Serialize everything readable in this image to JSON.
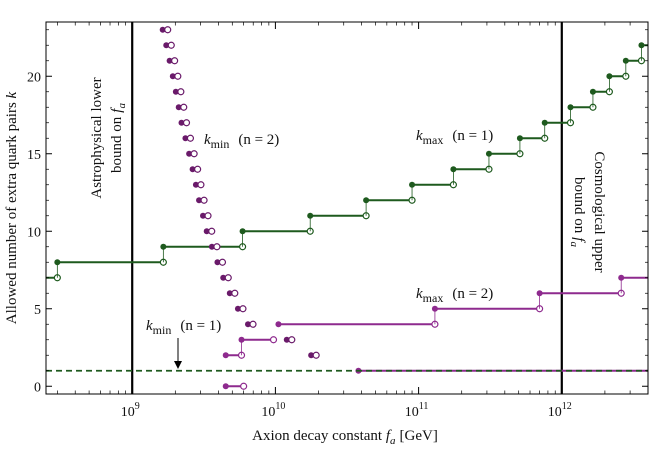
{
  "chart_data": {
    "type": "line",
    "title": "",
    "xlabel": "Axion decay constant",
    "xlabel_symbol": "f",
    "xlabel_sub": "a",
    "xlabel_unit": "[GeV]",
    "ylabel": "Allowed number of extra quark pairs k",
    "x_scale": "log",
    "xlim": [
      250000000,
      4000000000000
    ],
    "ylim": [
      -0.5,
      23.5
    ],
    "x_ticks": [
      {
        "value": 1000000000,
        "base": "10",
        "exp": "9"
      },
      {
        "value": 10000000000,
        "base": "10",
        "exp": "10"
      },
      {
        "value": 100000000000,
        "base": "10",
        "exp": "11"
      },
      {
        "value": 1000000000000,
        "base": "10",
        "exp": "12"
      }
    ],
    "y_ticks": [
      0,
      5,
      10,
      15,
      20
    ],
    "vertical_lines": [
      1000000000,
      1000000000000
    ],
    "grid": false,
    "colors": {
      "kmax_n1": "#1e5a1e",
      "kmax_n2": "#8e2a8e",
      "kmin_n2": "#6a1a6a",
      "axis": "#000000"
    },
    "series": [
      {
        "name": "k_max (n = 1)",
        "color": "#1e5a1e",
        "style": "step",
        "steps": [
          {
            "k": 7,
            "x1": 250000000,
            "x2": 300000000
          },
          {
            "k": 8,
            "x1": 300000000,
            "x2": 1650000000
          },
          {
            "k": 9,
            "x1": 1650000000,
            "x2": 5900000000
          },
          {
            "k": 10,
            "x1": 5900000000,
            "x2": 17500000000
          },
          {
            "k": 11,
            "x1": 17500000000,
            "x2": 43000000000
          },
          {
            "k": 12,
            "x1": 43000000000,
            "x2": 90000000000
          },
          {
            "k": 13,
            "x1": 90000000000,
            "x2": 175000000000
          },
          {
            "k": 14,
            "x1": 175000000000,
            "x2": 310000000000
          },
          {
            "k": 15,
            "x1": 310000000000,
            "x2": 510000000000
          },
          {
            "k": 16,
            "x1": 510000000000,
            "x2": 760000000000
          },
          {
            "k": 17,
            "x1": 760000000000,
            "x2": 1150000000000
          },
          {
            "k": 18,
            "x1": 1150000000000,
            "x2": 1650000000000
          },
          {
            "k": 19,
            "x1": 1650000000000,
            "x2": 2150000000000
          },
          {
            "k": 20,
            "x1": 2150000000000,
            "x2": 2800000000000
          },
          {
            "k": 21,
            "x1": 2800000000000,
            "x2": 3600000000000
          },
          {
            "k": 22,
            "x1": 3600000000000,
            "x2": 4000000000000
          }
        ]
      },
      {
        "name": "k_max (n = 2)",
        "color": "#8e2a8e",
        "style": "step",
        "steps": [
          {
            "k": 0,
            "x1": 4500000000,
            "x2": 6000000000
          },
          {
            "k": 1,
            "x1": 38000000000,
            "x2": 4000000000000
          },
          {
            "k": 2,
            "x1": 4500000000,
            "x2": 5800000000
          },
          {
            "k": 3,
            "x1": 5800000000,
            "x2": 9700000000
          },
          {
            "k": 4,
            "x1": 10500000000,
            "x2": 130000000000
          },
          {
            "k": 5,
            "x1": 130000000000,
            "x2": 700000000000
          },
          {
            "k": 6,
            "x1": 700000000000,
            "x2": 2600000000000
          },
          {
            "k": 7,
            "x1": 2600000000000,
            "x2": 4000000000000
          }
        ]
      },
      {
        "name": "k_min (n = 2)",
        "color": "#6a1a6a",
        "style": "dots",
        "points": [
          {
            "k": 23,
            "x": 1700000000
          },
          {
            "k": 22,
            "x": 1800000000
          },
          {
            "k": 21,
            "x": 1900000000
          },
          {
            "k": 20,
            "x": 2000000000
          },
          {
            "k": 19,
            "x": 2100000000
          },
          {
            "k": 18,
            "x": 2200000000
          },
          {
            "k": 17,
            "x": 2300000000
          },
          {
            "k": 16,
            "x": 2450000000
          },
          {
            "k": 15,
            "x": 2600000000
          },
          {
            "k": 14,
            "x": 2750000000
          },
          {
            "k": 13,
            "x": 2900000000
          },
          {
            "k": 12,
            "x": 3050000000
          },
          {
            "k": 11,
            "x": 3250000000
          },
          {
            "k": 10,
            "x": 3450000000
          },
          {
            "k": 9,
            "x": 3750000000
          },
          {
            "k": 8,
            "x": 4100000000
          },
          {
            "k": 7,
            "x": 4500000000
          },
          {
            "k": 6,
            "x": 5000000000
          },
          {
            "k": 5,
            "x": 5700000000
          },
          {
            "k": 4,
            "x": 6700000000
          },
          {
            "k": 3,
            "x": 12500000000
          },
          {
            "k": 2,
            "x": 18500000000
          }
        ]
      },
      {
        "name": "k_min (n = 1)",
        "color": "#1e5a1e",
        "style": "dashed",
        "steps": [
          {
            "k": 1,
            "x1": 250000000,
            "x2": 4000000000000
          }
        ]
      }
    ],
    "annotations": [
      {
        "id": "astro",
        "text": "Astrophysical lower bound on f_a"
      },
      {
        "id": "cosmo",
        "text": "Cosmological upper bound on f_a"
      },
      {
        "id": "kmin-n2",
        "text": "k_min (n = 2)"
      },
      {
        "id": "kmax-n1",
        "text": "k_max (n = 1)"
      },
      {
        "id": "kmax-n2",
        "text": "k_max (n = 2)"
      },
      {
        "id": "kmin-n1",
        "text": "k_min (n = 1)"
      }
    ]
  },
  "labels": {
    "astro_line1": "Astrophysical lower",
    "astro_line2": "bound on",
    "cosmo_line1": "Cosmological upper",
    "cosmo_line2": "bound on",
    "fa_f": "f",
    "fa_sub": "a",
    "k": "k",
    "kmin_sub": "min",
    "kmax_sub": "max",
    "n1": "(n = 1)",
    "n2": "(n = 2)",
    "ylabel_text": "Allowed number of extra quark pairs",
    "ylabel_k": "k"
  }
}
